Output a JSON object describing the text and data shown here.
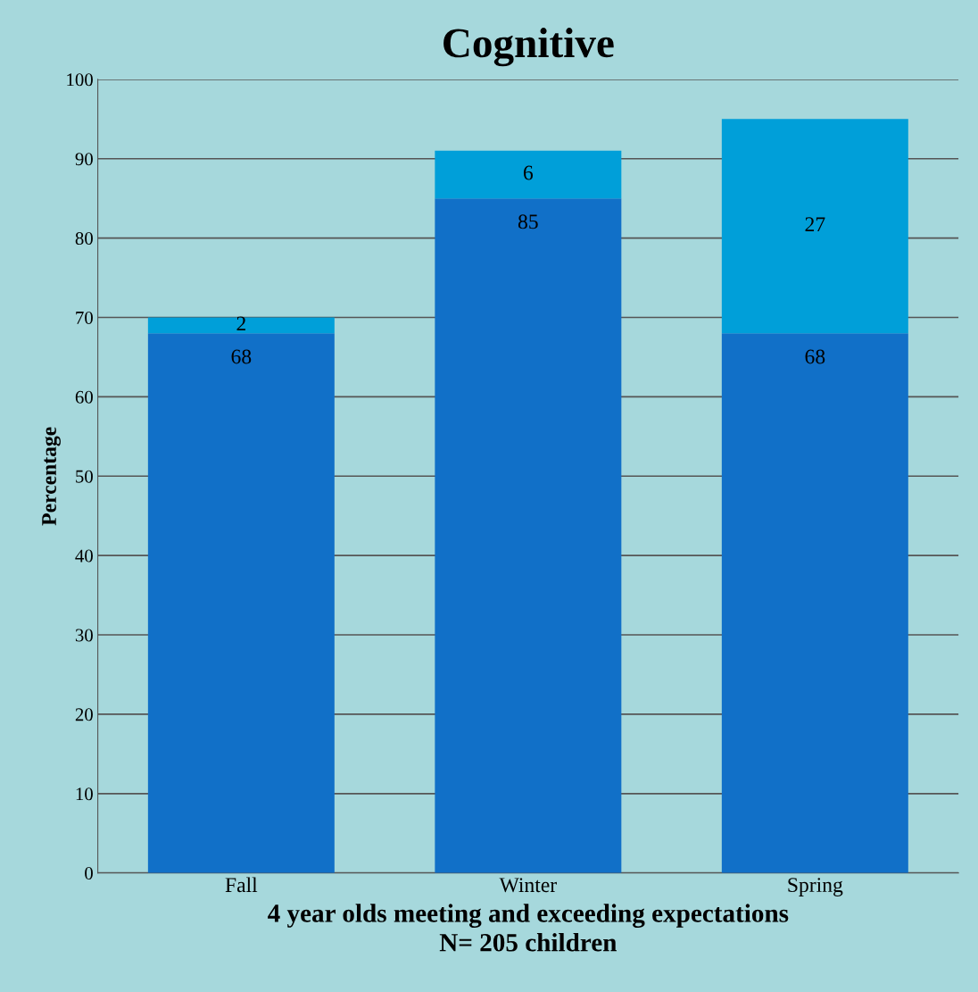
{
  "chart_data": {
    "type": "bar",
    "title": "Cognitive",
    "xlabel": "4 year olds meeting and exceeding expectations\nN= 205 children",
    "ylabel": "Percentage",
    "categories": [
      "Fall",
      "Winter",
      "Spring"
    ],
    "stacked": true,
    "series": [
      {
        "color": "#1170c8",
        "values": [
          68,
          85,
          68
        ]
      },
      {
        "color": "#009fd9",
        "values": [
          2,
          6,
          27
        ]
      }
    ],
    "ylim": [
      0,
      100
    ],
    "yticks": [
      0,
      10,
      20,
      30,
      40,
      50,
      60,
      70,
      80,
      90,
      100
    ],
    "grid": "y",
    "data_labels": true,
    "legend": false
  }
}
